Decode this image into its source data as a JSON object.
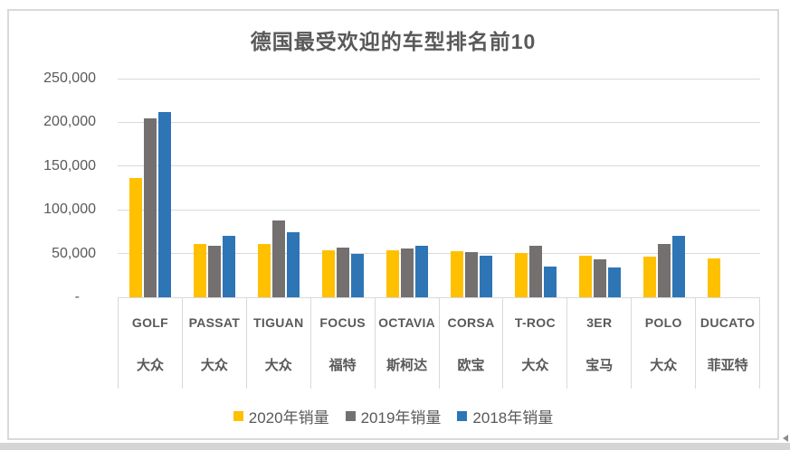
{
  "chart_data": {
    "type": "bar",
    "title": "德国最受欢迎的车型排名前10",
    "categories": [
      "GOLF",
      "PASSAT",
      "TIGUAN",
      "FOCUS",
      "OCTAVIA",
      "CORSA",
      "T-ROC",
      "3ER",
      "POLO",
      "DUCATO"
    ],
    "brands": [
      "大众",
      "大众",
      "大众",
      "福特",
      "斯柯达",
      "欧宝",
      "大众",
      "宝马",
      "大众",
      "菲亚特"
    ],
    "series": [
      {
        "name": "2020年销量",
        "color": "#FFC000",
        "values": [
          136000,
          61000,
          60500,
          53500,
          54000,
          53000,
          50500,
          47500,
          47000,
          44500
        ]
      },
      {
        "name": "2019年销量",
        "color": "#747070",
        "values": [
          205000,
          59000,
          88000,
          57000,
          55500,
          52000,
          59000,
          43500,
          61000,
          null
        ]
      },
      {
        "name": "2018年销量",
        "color": "#2E75B6",
        "values": [
          212000,
          70500,
          74500,
          50000,
          59000,
          47500,
          35000,
          34000,
          70000,
          null
        ]
      }
    ],
    "ylim": [
      0,
      250000
    ],
    "ytick_interval": 50000,
    "ytick_labels": [
      "-",
      "50,000",
      "100,000",
      "150,000",
      "200,000",
      "250,000"
    ],
    "grid": true,
    "legend_position": "bottom"
  },
  "colors": {
    "title_text": "#595959",
    "axis_text": "#595959",
    "gridline": "#D9D9D9",
    "frame_border": "#D9D9D9",
    "bottom_strip": "#D5D5D5",
    "scroll_arrow": "#8C8C8C"
  }
}
